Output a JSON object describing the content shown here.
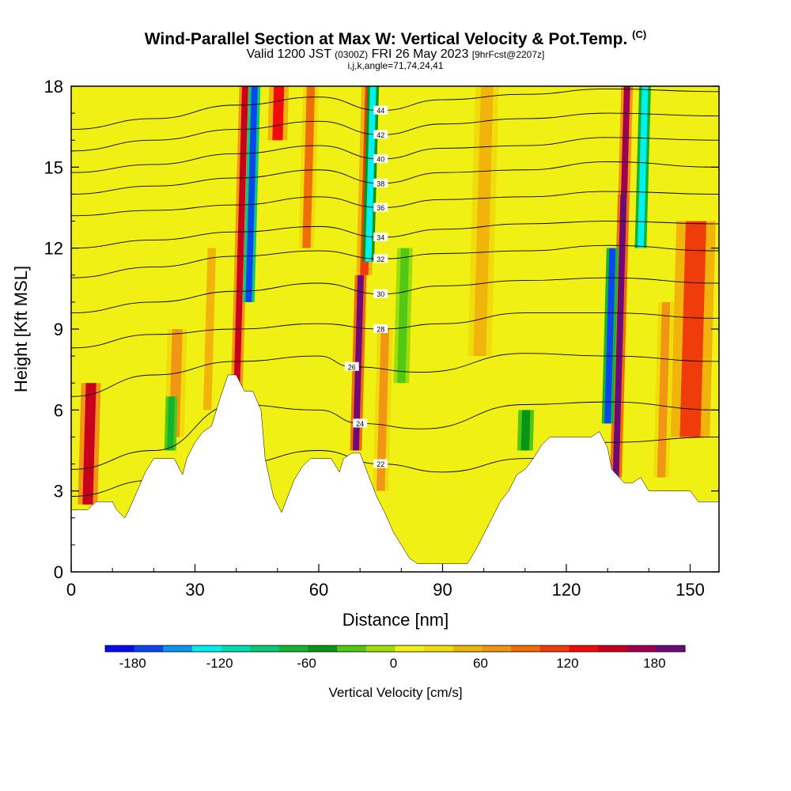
{
  "header": {
    "title": "Wind-Parallel Section at Max W: Vertical Velocity & Pot.Temp.",
    "copyright": "(C)",
    "valid_prefix": "Valid 1200 JST",
    "valid_utc": "(0300Z)",
    "valid_date": "FRI 26 May 2023",
    "forecast": "[9hrFcst@2207z]",
    "indices": "i,j,k,angle=71,74,24,41"
  },
  "chart_data": {
    "type": "heatmap",
    "xlabel": "Distance [nm]",
    "ylabel": "Height [Kft MSL]",
    "xlim": [
      0,
      157
    ],
    "ylim": [
      0,
      18
    ],
    "x_ticks": [
      "0",
      "30",
      "60",
      "90",
      "120",
      "150"
    ],
    "y_ticks": [
      "0",
      "3",
      "6",
      "9",
      "12",
      "15",
      "18"
    ],
    "colorbar": {
      "label": "Vertical Velocity [cm/s]",
      "min": -200,
      "max": 200,
      "ticks": [
        "-180",
        "-120",
        "-60",
        "0",
        "60",
        "120",
        "180"
      ],
      "colors": [
        "#0a0af0",
        "#0a46f0",
        "#0a96f0",
        "#00f0f0",
        "#00dcb4",
        "#0ac878",
        "#14b432",
        "#0a9614",
        "#50c814",
        "#a0dc0a",
        "#f0f014",
        "#f0dc0a",
        "#f0b40a",
        "#f09614",
        "#f06e0a",
        "#f03c0a",
        "#f00a0a",
        "#c8001e",
        "#a00050",
        "#6e0a78"
      ]
    },
    "terrain_kft": [
      [
        0,
        2.3
      ],
      [
        4,
        2.3
      ],
      [
        6,
        2.6
      ],
      [
        10,
        2.6
      ],
      [
        11,
        2.3
      ],
      [
        13,
        2.0
      ],
      [
        14,
        2.3
      ],
      [
        16,
        3.0
      ],
      [
        18,
        3.7
      ],
      [
        20,
        4.2
      ],
      [
        25,
        4.2
      ],
      [
        27,
        3.6
      ],
      [
        28,
        4.2
      ],
      [
        30,
        4.8
      ],
      [
        32,
        5.2
      ],
      [
        34,
        5.4
      ],
      [
        36,
        6.4
      ],
      [
        38,
        7.3
      ],
      [
        40,
        7.3
      ],
      [
        42,
        6.7
      ],
      [
        44,
        6.7
      ],
      [
        46,
        6.0
      ],
      [
        47,
        4.2
      ],
      [
        48,
        3.5
      ],
      [
        49,
        2.8
      ],
      [
        51,
        2.2
      ],
      [
        52,
        2.6
      ],
      [
        54,
        3.4
      ],
      [
        56,
        3.9
      ],
      [
        58,
        4.2
      ],
      [
        63,
        4.2
      ],
      [
        65,
        3.7
      ],
      [
        66,
        4.2
      ],
      [
        68,
        4.4
      ],
      [
        70,
        4.4
      ],
      [
        72,
        3.6
      ],
      [
        74,
        2.8
      ],
      [
        76,
        2.2
      ],
      [
        78,
        1.5
      ],
      [
        80,
        1.0
      ],
      [
        82,
        0.5
      ],
      [
        84,
        0.3
      ],
      [
        96,
        0.3
      ],
      [
        98,
        0.8
      ],
      [
        100,
        1.4
      ],
      [
        102,
        2.0
      ],
      [
        104,
        2.6
      ],
      [
        106,
        3.0
      ],
      [
        108,
        3.6
      ],
      [
        110,
        3.8
      ],
      [
        112,
        4.2
      ],
      [
        114,
        4.7
      ],
      [
        116,
        5.0
      ],
      [
        126,
        5.0
      ],
      [
        128,
        5.2
      ],
      [
        130,
        4.6
      ],
      [
        131,
        3.8
      ],
      [
        134,
        3.3
      ],
      [
        136,
        3.3
      ],
      [
        138,
        3.5
      ],
      [
        140,
        3.0
      ],
      [
        150,
        3.0
      ],
      [
        152,
        2.6
      ],
      [
        157,
        2.6
      ]
    ],
    "updraft_columns": [
      {
        "x": 4,
        "w": 145,
        "width_nm": 2.5,
        "z_bottom": 2.5,
        "z_top": 7.0
      },
      {
        "x": 25,
        "w": 65,
        "width_nm": 2.5,
        "z_bottom": 5.0,
        "z_top": 9.0
      },
      {
        "x": 33,
        "w": 40,
        "width_nm": 2.0,
        "z_bottom": 6.0,
        "z_top": 12.0
      },
      {
        "x": 40,
        "w": 150,
        "width_nm": 1.5,
        "z_bottom": 6.0,
        "z_top": 18.0
      },
      {
        "x": 50,
        "w": 130,
        "width_nm": 2.5,
        "z_bottom": 16.0,
        "z_top": 18.0
      },
      {
        "x": 57,
        "w": 80,
        "width_nm": 2.0,
        "z_bottom": 12.0,
        "z_top": 18.0
      },
      {
        "x": 69,
        "w": 190,
        "width_nm": 1.5,
        "z_bottom": 4.5,
        "z_top": 11.0
      },
      {
        "x": 71,
        "w": 100,
        "width_nm": 2.0,
        "z_bottom": 11.0,
        "z_top": 18.0
      },
      {
        "x": 75,
        "w": 70,
        "width_nm": 2.0,
        "z_bottom": 3.0,
        "z_top": 9.0
      },
      {
        "x": 99,
        "w": 50,
        "width_nm": 3.0,
        "z_bottom": 8.0,
        "z_top": 18.0
      },
      {
        "x": 132,
        "w": 190,
        "width_nm": 1.5,
        "z_bottom": 3.5,
        "z_top": 14.0
      },
      {
        "x": 134,
        "w": 160,
        "width_nm": 1.5,
        "z_bottom": 14.0,
        "z_top": 18.0
      },
      {
        "x": 150,
        "w": 110,
        "width_nm": 5.0,
        "z_bottom": 5.0,
        "z_top": 13.0
      },
      {
        "x": 143,
        "w": 60,
        "width_nm": 2.0,
        "z_bottom": 3.5,
        "z_top": 10.0
      }
    ],
    "downdraft_columns": [
      {
        "x": 43,
        "w": -180,
        "width_nm": 1.5,
        "z_bottom": 10.0,
        "z_top": 18.0
      },
      {
        "x": 72,
        "w": -130,
        "width_nm": 1.5,
        "z_bottom": 11.5,
        "z_top": 18.0
      },
      {
        "x": 130,
        "w": -170,
        "width_nm": 1.5,
        "z_bottom": 5.5,
        "z_top": 12.0
      },
      {
        "x": 138,
        "w": -140,
        "width_nm": 1.5,
        "z_bottom": 12.0,
        "z_top": 18.0
      },
      {
        "x": 24,
        "w": -70,
        "width_nm": 1.5,
        "z_bottom": 4.5,
        "z_top": 6.5
      },
      {
        "x": 110,
        "w": -60,
        "width_nm": 2.0,
        "z_bottom": 4.5,
        "z_top": 6.0
      },
      {
        "x": 80,
        "w": -40,
        "width_nm": 2.0,
        "z_bottom": 7.0,
        "z_top": 12.0
      }
    ],
    "isentropes": [
      {
        "label": "22",
        "points": [
          [
            0,
            2.8
          ],
          [
            20,
            3.4
          ],
          [
            40,
            4.0
          ],
          [
            60,
            4.5
          ],
          [
            75,
            4.0
          ],
          [
            90,
            3.7
          ],
          [
            110,
            4.2
          ],
          [
            130,
            4.8
          ],
          [
            157,
            5.0
          ]
        ]
      },
      {
        "label": "24",
        "points": [
          [
            0,
            3.8
          ],
          [
            20,
            4.5
          ],
          [
            40,
            6.2
          ],
          [
            60,
            6.0
          ],
          [
            70,
            5.5
          ],
          [
            85,
            5.3
          ],
          [
            110,
            6.2
          ],
          [
            130,
            6.3
          ],
          [
            157,
            6.0
          ]
        ]
      },
      {
        "label": "26",
        "points": [
          [
            0,
            6.5
          ],
          [
            20,
            7.3
          ],
          [
            40,
            7.8
          ],
          [
            60,
            8.0
          ],
          [
            68,
            7.6
          ],
          [
            85,
            7.4
          ],
          [
            110,
            8.1
          ],
          [
            130,
            8.0
          ],
          [
            157,
            7.8
          ]
        ]
      },
      {
        "label": "28",
        "points": [
          [
            0,
            8.3
          ],
          [
            20,
            8.8
          ],
          [
            40,
            9.0
          ],
          [
            60,
            9.2
          ],
          [
            75,
            9.0
          ],
          [
            90,
            9.2
          ],
          [
            110,
            9.6
          ],
          [
            130,
            9.6
          ],
          [
            157,
            9.4
          ]
        ]
      },
      {
        "label": "30",
        "points": [
          [
            0,
            9.6
          ],
          [
            20,
            10.0
          ],
          [
            40,
            10.4
          ],
          [
            60,
            10.7
          ],
          [
            75,
            10.3
          ],
          [
            90,
            10.6
          ],
          [
            110,
            10.8
          ],
          [
            130,
            10.9
          ],
          [
            157,
            10.7
          ]
        ]
      },
      {
        "label": "32",
        "points": [
          [
            0,
            10.9
          ],
          [
            20,
            11.3
          ],
          [
            40,
            11.7
          ],
          [
            60,
            11.9
          ],
          [
            75,
            11.6
          ],
          [
            90,
            11.8
          ],
          [
            110,
            11.9
          ],
          [
            130,
            12.1
          ],
          [
            157,
            11.9
          ]
        ]
      },
      {
        "label": "34",
        "points": [
          [
            0,
            12.0
          ],
          [
            20,
            12.3
          ],
          [
            40,
            12.6
          ],
          [
            60,
            12.8
          ],
          [
            75,
            12.4
          ],
          [
            90,
            12.7
          ],
          [
            110,
            12.9
          ],
          [
            130,
            13.0
          ],
          [
            157,
            12.9
          ]
        ]
      },
      {
        "label": "36",
        "points": [
          [
            0,
            13.2
          ],
          [
            20,
            13.4
          ],
          [
            40,
            13.6
          ],
          [
            60,
            13.9
          ],
          [
            75,
            13.5
          ],
          [
            90,
            13.8
          ],
          [
            110,
            13.9
          ],
          [
            130,
            14.1
          ],
          [
            157,
            14.0
          ]
        ]
      },
      {
        "label": "38",
        "points": [
          [
            0,
            14.0
          ],
          [
            20,
            14.3
          ],
          [
            40,
            14.6
          ],
          [
            60,
            14.9
          ],
          [
            75,
            14.4
          ],
          [
            90,
            14.8
          ],
          [
            110,
            14.9
          ],
          [
            130,
            15.2
          ],
          [
            157,
            15.0
          ]
        ]
      },
      {
        "label": "40",
        "points": [
          [
            0,
            14.8
          ],
          [
            20,
            15.1
          ],
          [
            40,
            15.5
          ],
          [
            60,
            15.8
          ],
          [
            75,
            15.3
          ],
          [
            90,
            15.7
          ],
          [
            110,
            15.8
          ],
          [
            130,
            16.1
          ],
          [
            157,
            16.0
          ]
        ]
      },
      {
        "label": "42",
        "points": [
          [
            0,
            15.6
          ],
          [
            20,
            16.0
          ],
          [
            40,
            16.4
          ],
          [
            60,
            16.7
          ],
          [
            75,
            16.2
          ],
          [
            90,
            16.6
          ],
          [
            110,
            16.8
          ],
          [
            130,
            17.0
          ],
          [
            157,
            16.9
          ]
        ]
      },
      {
        "label": "44",
        "points": [
          [
            0,
            16.4
          ],
          [
            20,
            16.8
          ],
          [
            40,
            17.3
          ],
          [
            60,
            17.6
          ],
          [
            75,
            17.1
          ],
          [
            90,
            17.5
          ],
          [
            110,
            17.7
          ],
          [
            130,
            17.9
          ],
          [
            157,
            17.8
          ]
        ]
      }
    ]
  }
}
